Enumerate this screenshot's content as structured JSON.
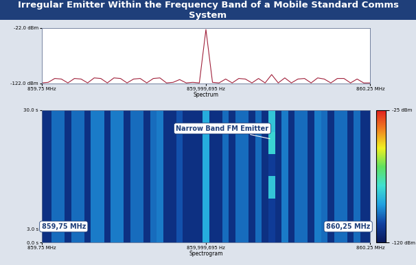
{
  "header": {
    "title": "Irregular Emitter Within the Frequency Band of a Mobile Standard Comms System"
  },
  "chart_data": [
    {
      "type": "line",
      "xlabel": "Spectrum",
      "color": "#a0203a",
      "x": [
        859.75,
        859.76,
        859.77,
        859.78,
        859.79,
        859.8,
        859.81,
        859.82,
        859.83,
        859.84,
        859.85,
        859.86,
        859.87,
        859.88,
        859.89,
        859.9,
        859.91,
        859.92,
        859.93,
        859.94,
        859.95,
        859.96,
        859.97,
        859.98,
        859.99,
        860.0,
        860.01,
        860.02,
        860.03,
        860.04,
        860.05,
        860.06,
        860.07,
        860.08,
        860.09,
        860.1,
        860.11,
        860.12,
        860.13,
        860.14,
        860.15,
        860.16,
        860.17,
        860.18,
        860.19,
        860.2,
        860.21,
        860.22,
        860.23,
        860.24,
        860.25
      ],
      "values": [
        -121,
        -120,
        -113,
        -114,
        -121,
        -113,
        -114,
        -121,
        -112,
        -113,
        -121,
        -112,
        -113,
        -121,
        -114,
        -113,
        -121,
        -113,
        -112,
        -121,
        -120,
        -115,
        -121,
        -120,
        -121,
        -25,
        -120,
        -121,
        -114,
        -121,
        -113,
        -114,
        -121,
        -113,
        -121,
        -106,
        -121,
        -112,
        -121,
        -114,
        -113,
        -121,
        -112,
        -114,
        -121,
        -113,
        -113,
        -121,
        -114,
        -121,
        -121
      ],
      "xlim": [
        859.75,
        860.25
      ],
      "xticks": [
        {
          "value": 859.75,
          "label": "859.75 MHz"
        },
        {
          "value": 859.999695,
          "label": "859,999,695 Hz"
        },
        {
          "value": 860.25,
          "label": "860.25 MHz"
        }
      ],
      "ylim": [
        -122,
        -22
      ],
      "yticks": [
        {
          "value": -122,
          "label": "-122.0 dBm"
        },
        {
          "value": -22,
          "label": "-22.0 dBm"
        }
      ]
    },
    {
      "type": "heatmap",
      "xlabel": "Spectrogram",
      "x": [
        859.75,
        859.76,
        859.77,
        859.78,
        859.79,
        859.8,
        859.81,
        859.82,
        859.83,
        859.84,
        859.85,
        859.86,
        859.87,
        859.88,
        859.89,
        859.9,
        859.91,
        859.92,
        859.93,
        859.94,
        859.95,
        859.96,
        859.97,
        859.98,
        859.99,
        860.0,
        860.01,
        860.02,
        860.03,
        860.04,
        860.05,
        860.06,
        860.07,
        860.08,
        860.09,
        860.1,
        860.11,
        860.12,
        860.13,
        860.14,
        860.15,
        860.16,
        860.17,
        860.18,
        860.19,
        860.2,
        860.21,
        860.22,
        860.23,
        860.24,
        860.25
      ],
      "y": [
        2.5,
        7.5,
        12.5,
        17.5,
        22.5,
        27.5
      ],
      "cells": [
        [
          -112,
          -112,
          -100,
          -100,
          -112,
          -100,
          -100,
          -112,
          -98,
          -98,
          -112,
          -98,
          -98,
          -112,
          -100,
          -100,
          -112,
          -100,
          -98,
          -112,
          -112,
          -104,
          -112,
          -112,
          -112,
          -90,
          -112,
          -112,
          -100,
          -112,
          -100,
          -100,
          -112,
          -100,
          -112,
          -108,
          -112,
          -98,
          -112,
          -100,
          -100,
          -112,
          -98,
          -100,
          -112,
          -100,
          -100,
          -112,
          -100,
          -112,
          -112
        ],
        [
          -112,
          -112,
          -100,
          -100,
          -112,
          -100,
          -100,
          -112,
          -98,
          -98,
          -112,
          -98,
          -98,
          -112,
          -100,
          -100,
          -112,
          -100,
          -98,
          -112,
          -112,
          -104,
          -112,
          -112,
          -112,
          -90,
          -112,
          -112,
          -100,
          -112,
          -100,
          -100,
          -112,
          -100,
          -112,
          -108,
          -112,
          -98,
          -112,
          -100,
          -100,
          -112,
          -98,
          -100,
          -112,
          -100,
          -100,
          -112,
          -100,
          -112,
          -112
        ],
        [
          -112,
          -112,
          -100,
          -100,
          -112,
          -100,
          -100,
          -112,
          -98,
          -98,
          -112,
          -98,
          -98,
          -112,
          -100,
          -100,
          -112,
          -100,
          -98,
          -112,
          -112,
          -104,
          -112,
          -112,
          -112,
          -90,
          -112,
          -112,
          -100,
          -112,
          -100,
          -100,
          -112,
          -100,
          -112,
          -85,
          -112,
          -98,
          -112,
          -100,
          -100,
          -112,
          -98,
          -100,
          -112,
          -100,
          -100,
          -112,
          -100,
          -112,
          -112
        ],
        [
          -112,
          -112,
          -100,
          -100,
          -112,
          -100,
          -100,
          -112,
          -98,
          -98,
          -112,
          -98,
          -98,
          -112,
          -100,
          -100,
          -112,
          -100,
          -98,
          -112,
          -112,
          -104,
          -112,
          -112,
          -112,
          -90,
          -112,
          -112,
          -100,
          -112,
          -100,
          -100,
          -112,
          -100,
          -112,
          -108,
          -112,
          -98,
          -112,
          -100,
          -100,
          -112,
          -98,
          -100,
          -112,
          -100,
          -100,
          -112,
          -100,
          -112,
          -112
        ],
        [
          -112,
          -112,
          -100,
          -100,
          -112,
          -100,
          -100,
          -112,
          -98,
          -98,
          -112,
          -98,
          -98,
          -112,
          -100,
          -100,
          -112,
          -100,
          -98,
          -112,
          -112,
          -104,
          -112,
          -112,
          -112,
          -90,
          -112,
          -112,
          -100,
          -112,
          -100,
          -100,
          -112,
          -100,
          -112,
          -82,
          -112,
          -98,
          -112,
          -100,
          -100,
          -112,
          -98,
          -100,
          -112,
          -100,
          -100,
          -112,
          -100,
          -112,
          -112
        ],
        [
          -112,
          -112,
          -100,
          -100,
          -112,
          -100,
          -100,
          -112,
          -98,
          -98,
          -112,
          -98,
          -98,
          -112,
          -100,
          -100,
          -112,
          -100,
          -98,
          -112,
          -112,
          -104,
          -112,
          -112,
          -112,
          -90,
          -112,
          -112,
          -100,
          -112,
          -100,
          -100,
          -112,
          -100,
          -112,
          -85,
          -112,
          -98,
          -112,
          -100,
          -100,
          -112,
          -98,
          -100,
          -112,
          -100,
          -100,
          -112,
          -100,
          -112,
          -112
        ]
      ],
      "xlim": [
        859.75,
        860.25
      ],
      "xticks": [
        {
          "value": 859.75,
          "label": "859.75 MHz"
        },
        {
          "value": 859.999695,
          "label": "859,999,695 Hz"
        },
        {
          "value": 860.25,
          "label": "860.25 MHz"
        }
      ],
      "ylim": [
        0,
        30
      ],
      "yticks": [
        {
          "value": 0,
          "label": "0.0 s"
        },
        {
          "value": 3,
          "label": "3.0 s"
        },
        {
          "value": 30,
          "label": "30.0 s"
        }
      ],
      "colorbar": {
        "range": [
          -120,
          -25
        ],
        "ticks": [
          {
            "value": -120,
            "label": "-120 dBm"
          },
          {
            "value": -25,
            "label": "-25 dBm"
          }
        ]
      },
      "annotations": [
        {
          "text": "Narrow Band FM Emitter",
          "x": 860.1
        },
        {
          "text": "859,75 MHz",
          "x": 859.75
        },
        {
          "text": "860,25 MHz",
          "x": 860.25
        }
      ]
    }
  ]
}
